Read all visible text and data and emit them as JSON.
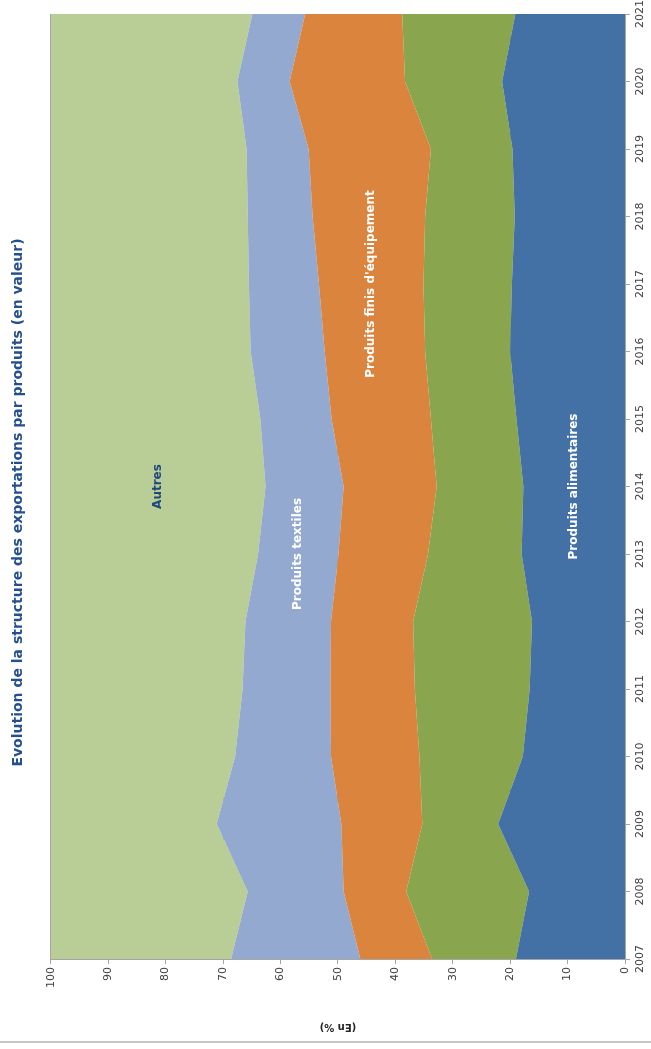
{
  "chart_data": {
    "type": "area",
    "title": "Evolution de la structure des exportations par produits (en valeur)",
    "xlabel": "(En %)",
    "orientation": "horizontal",
    "stacked": true,
    "legend": false,
    "grid": "x",
    "categories": [
      "2021",
      "2020",
      "2019",
      "2018",
      "2017",
      "2016",
      "2015",
      "2014",
      "2013",
      "2012",
      "2011",
      "2010",
      "2009",
      "2008",
      "2007"
    ],
    "series": [
      {
        "name": "Produits alimentaires",
        "color": "#4471a5",
        "values": [
          19.1,
          21.4,
          19.6,
          19.2,
          19.7,
          20.0,
          18.9,
          17.7,
          18.0,
          16.2,
          16.6,
          17.8,
          22.1,
          16.7,
          19.0
        ]
      },
      {
        "color": "#89a54e",
        "values": [
          19.7,
          16.9,
          14.2,
          15.6,
          15.4,
          14.8,
          14.9,
          15.1,
          16.3,
          20.7,
          20.0,
          18.0,
          13.2,
          21.4,
          14.6
        ]
      },
      {
        "name": "Produits finis d'équipement",
        "color": "#db843d",
        "values": [
          16.9,
          20.1,
          21.3,
          19.6,
          18.2,
          17.5,
          17.3,
          16.2,
          15.6,
          14.3,
          14.7,
          15.4,
          14.1,
          10.9,
          12.5
        ]
      },
      {
        "name": "Produits textiles",
        "color": "#93a9cf",
        "values": [
          9.2,
          9.1,
          10.8,
          11.3,
          12.2,
          12.9,
          12.4,
          13.6,
          14.0,
          14.9,
          15.3,
          16.7,
          21.7,
          16.7,
          22.5
        ]
      },
      {
        "name": "Autres",
        "color": "#b9cd96",
        "values": [
          35.1,
          32.5,
          34.1,
          34.3,
          34.5,
          34.8,
          36.5,
          37.4,
          36.1,
          33.9,
          33.4,
          32.1,
          28.9,
          34.3,
          31.4
        ]
      }
    ],
    "xlim": [
      100,
      0
    ],
    "xticks": [
      0,
      10,
      20,
      30,
      40,
      50,
      60,
      70,
      80,
      90,
      100
    ]
  }
}
